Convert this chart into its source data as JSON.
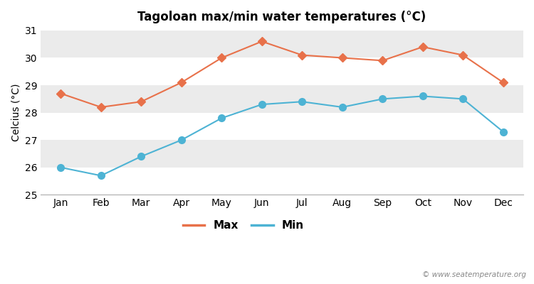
{
  "title": "Tagoloan max/min water temperatures (°C)",
  "ylabel": "Celcius (°C)",
  "months": [
    "Jan",
    "Feb",
    "Mar",
    "Apr",
    "May",
    "Jun",
    "Jul",
    "Aug",
    "Sep",
    "Oct",
    "Nov",
    "Dec"
  ],
  "max_values": [
    28.7,
    28.2,
    28.4,
    29.1,
    30.0,
    30.6,
    30.1,
    30.0,
    29.9,
    30.4,
    30.1,
    29.1
  ],
  "min_values": [
    26.0,
    25.7,
    26.4,
    27.0,
    27.8,
    28.3,
    28.4,
    28.2,
    28.5,
    28.6,
    28.5,
    27.3
  ],
  "max_color": "#e8714a",
  "min_color": "#4db3d4",
  "ylim": [
    25,
    31
  ],
  "yticks": [
    25,
    26,
    27,
    28,
    29,
    30,
    31
  ],
  "fig_bg_color": "#ffffff",
  "band_colors": [
    "#ffffff",
    "#ebebeb"
  ],
  "spine_color": "#aaaaaa",
  "watermark": "© www.seatemperature.org",
  "legend_max": "Max",
  "legend_min": "Min"
}
